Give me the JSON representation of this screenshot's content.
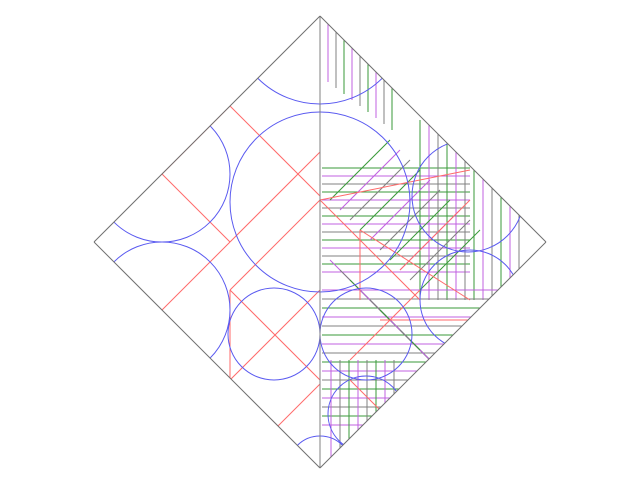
{
  "diagram": {
    "kind": "origami crease pattern (circle packing) on a square rotated 45°",
    "colors": {
      "background": "#ffffff",
      "border": "#707070",
      "circle": "#5a5af0",
      "river": "#ff6a6a",
      "hinge_green": "#3a9a3a",
      "hinge_magenta": "#c060e0",
      "gray_line": "#808080"
    },
    "labels": []
  }
}
